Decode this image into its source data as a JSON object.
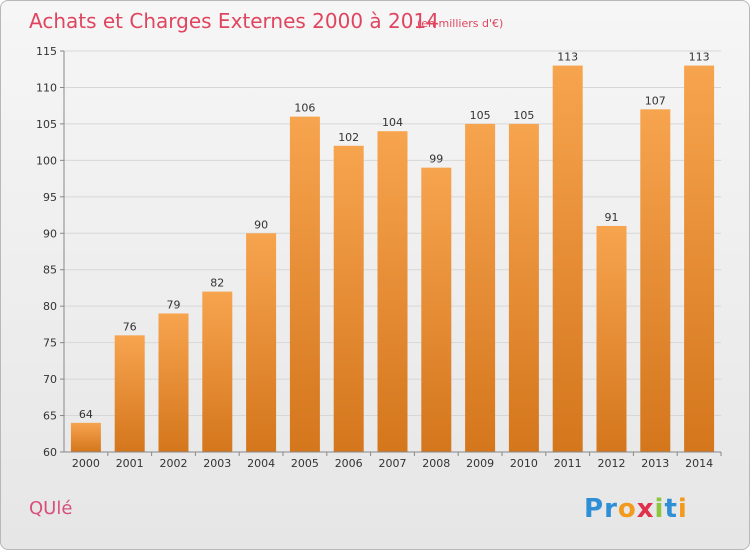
{
  "chart_data": {
    "type": "bar",
    "title": "Achats et Charges Externes 2000 à 2014",
    "unit": "(en milliers d'€)",
    "categories": [
      "2000",
      "2001",
      "2002",
      "2003",
      "2004",
      "2005",
      "2006",
      "2007",
      "2008",
      "2009",
      "2010",
      "2011",
      "2012",
      "2013",
      "2014"
    ],
    "values": [
      64,
      76,
      79,
      82,
      90,
      106,
      102,
      104,
      99,
      105,
      105,
      113,
      91,
      107,
      113
    ],
    "ylim": [
      60,
      115
    ],
    "yticks": [
      60,
      65,
      70,
      75,
      80,
      85,
      90,
      95,
      100,
      105,
      110,
      115
    ],
    "xlabel": "",
    "ylabel": "",
    "grid": true,
    "bar_color_top": "#f7a44f",
    "bar_color_bottom": "#d4761c"
  },
  "commune": "QUlé",
  "logo": {
    "text": "Proxiti",
    "letters": [
      {
        "ch": "P",
        "color": "#2e8fd6"
      },
      {
        "ch": "r",
        "color": "#2e8fd6"
      },
      {
        "ch": "o",
        "color": "#f29a1d"
      },
      {
        "ch": "x",
        "color": "#e0304e"
      },
      {
        "ch": "i",
        "color": "#8cc63f"
      },
      {
        "ch": "t",
        "color": "#2e8fd6"
      },
      {
        "ch": "i",
        "color": "#f29a1d"
      }
    ]
  }
}
